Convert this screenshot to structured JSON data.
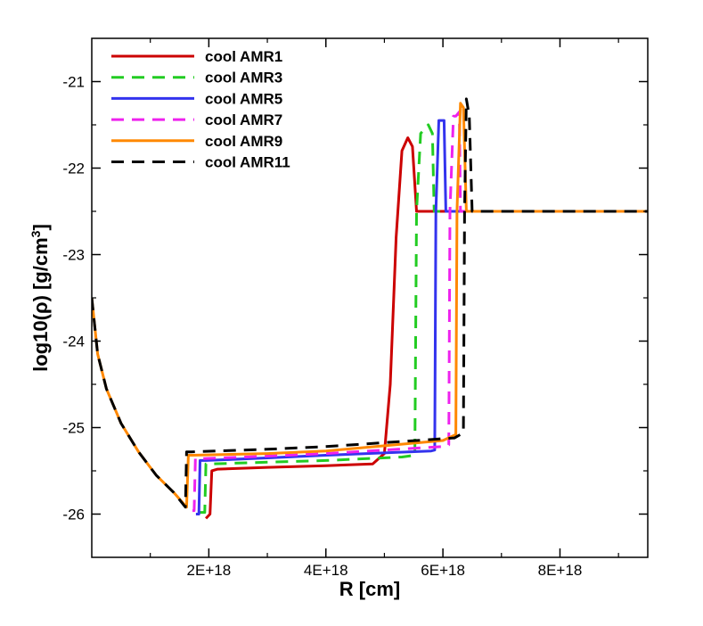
{
  "chart_data": {
    "type": "line",
    "title": "",
    "xlabel": "R [cm]",
    "ylabel_prefix": "log10(ρ) [g/cm",
    "ylabel_sup": "3",
    "ylabel_suffix": "]",
    "xlim": [
      0,
      9.5e+18
    ],
    "ylim": [
      -26.5,
      -20.5
    ],
    "x_ticks": [
      {
        "value": 2e+18,
        "label": "2E+18"
      },
      {
        "value": 4e+18,
        "label": "4E+18"
      },
      {
        "value": 6e+18,
        "label": "6E+18"
      },
      {
        "value": 8e+18,
        "label": "8E+18"
      }
    ],
    "x_minor_step": 1e+18,
    "y_ticks": [
      {
        "value": -21,
        "label": "-21"
      },
      {
        "value": -22,
        "label": "-22"
      },
      {
        "value": -23,
        "label": "-23"
      },
      {
        "value": -24,
        "label": "-24"
      },
      {
        "value": -25,
        "label": "-25"
      },
      {
        "value": -26,
        "label": "-26"
      }
    ],
    "y_minor_step": 0.5,
    "grid": false,
    "legend_position": "top-left",
    "series": [
      {
        "name": "cool AMR1",
        "color": "#cc0000",
        "dash": "solid",
        "x": [
          1.95e+18,
          2.02e+18,
          2.05e+18,
          2.15e+18,
          3e+18,
          4e+18,
          4.8e+18,
          5e+18,
          5.1e+18,
          5.2e+18,
          5.3e+18,
          5.4e+18,
          5.48e+18,
          5.55e+18,
          9.5e+18
        ],
        "y": [
          -26.05,
          -26.0,
          -25.5,
          -25.48,
          -25.46,
          -25.44,
          -25.42,
          -25.3,
          -24.5,
          -22.8,
          -21.8,
          -21.65,
          -21.75,
          -22.5,
          -22.5
        ]
      },
      {
        "name": "cool AMR3",
        "color": "#22cc22",
        "dash": "dashed",
        "x": [
          1.85e+18,
          1.93e+18,
          1.95e+18,
          2.05e+18,
          3e+18,
          4e+18,
          5.3e+18,
          5.52e+18,
          5.55e+18,
          5.62e+18,
          5.75e+18,
          5.82e+18,
          5.85e+18,
          9.5e+18
        ],
        "y": [
          -25.98,
          -25.98,
          -25.42,
          -25.42,
          -25.4,
          -25.38,
          -25.34,
          -25.32,
          -22.5,
          -21.6,
          -21.5,
          -21.6,
          -22.5,
          -22.5
        ]
      },
      {
        "name": "cool AMR5",
        "color": "#3333ee",
        "dash": "solid",
        "x": [
          1.78e+18,
          1.83e+18,
          1.85e+18,
          1.95e+18,
          3e+18,
          4e+18,
          5.8e+18,
          5.86e+18,
          5.88e+18,
          5.93e+18,
          6.02e+18,
          6.05e+18,
          9.5e+18
        ],
        "y": [
          -26.0,
          -26.0,
          -25.38,
          -25.38,
          -25.35,
          -25.32,
          -25.27,
          -25.26,
          -22.5,
          -21.45,
          -21.45,
          -22.5,
          -22.5
        ]
      },
      {
        "name": "cool AMR7",
        "color": "#ee22ee",
        "dash": "dashed",
        "x": [
          1.72e+18,
          1.75e+18,
          1.77e+18,
          1.85e+18,
          3e+18,
          4e+18,
          6e+18,
          6.1e+18,
          6.12e+18,
          6.18e+18,
          6.22e+18,
          6.28e+18,
          6.3e+18,
          9.5e+18
        ],
        "y": [
          -25.96,
          -25.96,
          -25.36,
          -25.36,
          -25.33,
          -25.3,
          -25.22,
          -25.2,
          -22.5,
          -21.4,
          -21.4,
          -21.35,
          -22.5,
          -22.5
        ]
      },
      {
        "name": "cool AMR9",
        "color": "#ff8800",
        "dash": "solid",
        "x": [
          0,
          1e+17,
          2.5e+17,
          5e+17,
          8e+17,
          1.1e+18,
          1.4e+18,
          1.62e+18,
          1.65e+18,
          1.72e+18,
          3e+18,
          4e+18,
          6e+18,
          6.22e+18,
          6.24e+18,
          6.3e+18,
          6.35e+18,
          6.4e+18,
          9.5e+18
        ],
        "y": [
          -23.5,
          -24.15,
          -24.55,
          -24.95,
          -25.28,
          -25.55,
          -25.75,
          -25.92,
          -25.32,
          -25.32,
          -25.3,
          -25.27,
          -25.15,
          -25.08,
          -22.5,
          -21.25,
          -21.3,
          -22.5,
          -22.5
        ]
      },
      {
        "name": "cool AMR11",
        "color": "#000000",
        "dash": "dashed",
        "x": [
          0,
          1e+17,
          2.5e+17,
          5e+17,
          8e+17,
          1.1e+18,
          1.4e+18,
          1.6e+18,
          1.62e+18,
          1.7e+18,
          3e+18,
          4e+18,
          6.2e+18,
          6.35e+18,
          6.37e+18,
          6.4e+18,
          6.45e+18,
          6.5e+18,
          9.5e+18
        ],
        "y": [
          -23.5,
          -24.15,
          -24.55,
          -24.95,
          -25.28,
          -25.55,
          -25.75,
          -25.92,
          -25.28,
          -25.28,
          -25.25,
          -25.22,
          -25.12,
          -25.06,
          -22.5,
          -21.2,
          -21.4,
          -22.5,
          -22.5
        ]
      }
    ]
  }
}
